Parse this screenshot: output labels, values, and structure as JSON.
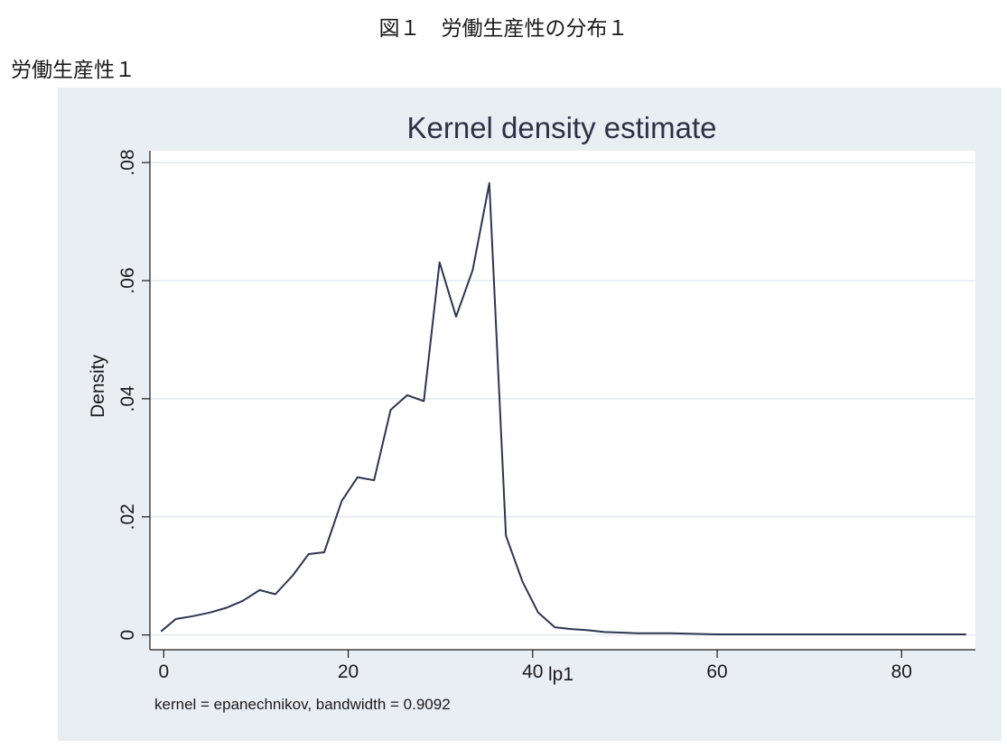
{
  "page": {
    "caption": "図１　労働生産性の分布１",
    "panel_label": "労働生産性１"
  },
  "chart_data": {
    "type": "line",
    "title": "Kernel density estimate",
    "xlabel": "lp1",
    "ylabel": "Density",
    "note": "kernel = epanechnikov, bandwidth = 0.9092",
    "xlim": [
      -1.5,
      88
    ],
    "ylim": [
      -0.0025,
      0.082
    ],
    "x_ticks": [
      0,
      20,
      40,
      60,
      80
    ],
    "x_tick_labels": [
      "0",
      "20",
      "40",
      "60",
      "80"
    ],
    "y_ticks": [
      0,
      0.02,
      0.04,
      0.06,
      0.08
    ],
    "y_tick_labels": [
      "0",
      ".02",
      ".04",
      ".06",
      ".08"
    ],
    "grid": true,
    "series": [
      {
        "color": "#2d3550",
        "x": [
          -0.3,
          1.3,
          3.2,
          5,
          6.8,
          8.6,
          10.4,
          12.1,
          14,
          15.7,
          17.4,
          19.3,
          21,
          22.8,
          24.6,
          26.4,
          28.2,
          29.9,
          31.7,
          33.5,
          35.3,
          37.1,
          38.9,
          40.6,
          42.4,
          44.2,
          46,
          47.8,
          49.6,
          51.4,
          53.2,
          55,
          57,
          60,
          63,
          66,
          70,
          75,
          80,
          87
        ],
        "y": [
          0.0006,
          0.0027,
          0.0032,
          0.0038,
          0.0046,
          0.0058,
          0.0076,
          0.0069,
          0.0101,
          0.0137,
          0.014,
          0.0227,
          0.0267,
          0.0262,
          0.0381,
          0.0406,
          0.0396,
          0.0631,
          0.0539,
          0.0618,
          0.0765,
          0.0168,
          0.009,
          0.0038,
          0.0013,
          0.001,
          0.0008,
          0.0005,
          0.0004,
          0.0003,
          0.0003,
          0.0003,
          0.0002,
          0.0001,
          0.0001,
          0.0001,
          0.0001,
          0.0001,
          0.0001,
          0.0001
        ]
      }
    ]
  }
}
